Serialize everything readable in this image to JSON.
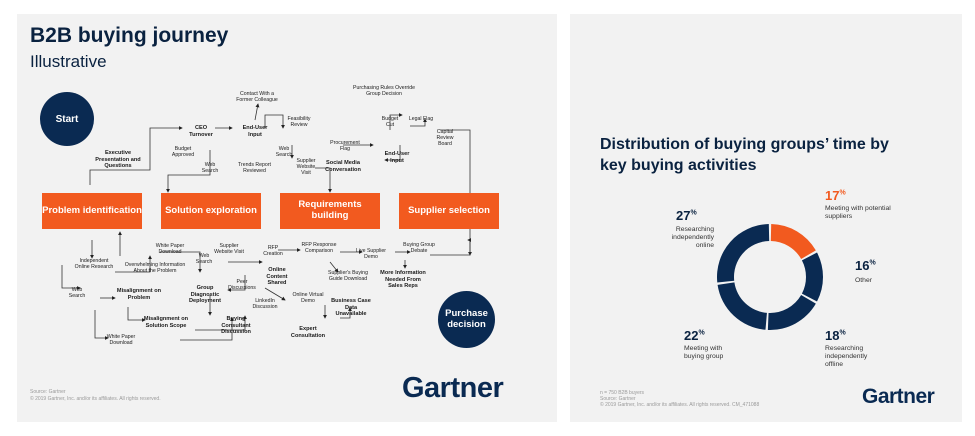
{
  "left": {
    "title": "B2B buying journey",
    "subtitle": "Illustrative",
    "start": "Start",
    "end": "Purchase decision",
    "stages": [
      "Problem identification",
      "Solution exploration",
      "Requirements building",
      "Supplier selection"
    ],
    "labels": {
      "contact": "Contact With a Former Colleague",
      "enduser1": "End-User Input",
      "ceo": "CEO Turnover",
      "budgetapproved": "Budget Approved",
      "feasibility": "Feasibility Review",
      "websearch_top": "Web Search",
      "trends": "Trends Report Reviewed",
      "supplierweb_top": "Supplier Website Visit",
      "websearch2": "Web Search",
      "exec": "Executive Presentation and Questions",
      "procurement": "Procurement Flag",
      "social": "Social Media Conversation",
      "purchasingrules": "Purchasing Rules Override Group Decision",
      "budgetcut": "Budget Cut",
      "legalflag": "Legal Flag",
      "capitalreview": "Capital Review Board",
      "enduser2": "End-User Input",
      "independent": "Independent Online Research",
      "whitepaper1": "White Paper Download",
      "websearch3": "Web Search",
      "overwhelming": "Overwhelming Information About the Problem",
      "supplierweb2": "Supplier Website Visit",
      "websearch4": "Web Search",
      "misalign1": "Misalignment on Problem",
      "groupdiag": "Group Diagnostic Deployment",
      "peer": "Peer Discussions",
      "rfp": "RFP Creation",
      "online": "Online Content Shared",
      "rfpresp": "RFP Response Comparison",
      "livedemo": "Live Supplier Demo",
      "buyingdebate": "Buying Group Debate",
      "suppliersguide": "Supplier's Buying Guide Download",
      "moreinfo": "More Information Needed From Sales Reps",
      "linkedin": "LinkedIn Discussion",
      "onlinedemo": "Online Virtual Demo",
      "businesscase": "Business Case Data Unavailable",
      "misalign2": "Misalignment on Solution Scope",
      "buyingconsult": "Buying Consultant Discussion",
      "expert": "Expert Consultation",
      "whitepaper2": "White Paper Download"
    },
    "brand": "Gartner",
    "footer": [
      "Source: Gartner",
      "© 2019 Gartner, Inc. and/or its affiliates. All rights reserved."
    ]
  },
  "right": {
    "title": "Distribution of buying groups’ time by key buying activities",
    "brand": "Gartner",
    "footer": [
      "n = 750 B2B buyers",
      "Source: Gartner",
      "© 2019 Gartner, Inc. and/or its affiliates. All rights reserved. CM_471088"
    ],
    "colors": {
      "navy": "#0a2a52",
      "orange": "#f25a1f"
    }
  },
  "chart_data": {
    "type": "pie",
    "title": "Distribution of buying groups’ time by key buying activities",
    "categories": [
      "Meeting with potential suppliers",
      "Other",
      "Researching independently offline",
      "Meeting with buying group",
      "Researching independently online"
    ],
    "values": [
      17,
      16,
      18,
      22,
      27
    ],
    "value_labels": [
      "17",
      "16",
      "18",
      "22",
      "27"
    ],
    "unit": "%",
    "highlight": "Meeting with potential suppliers",
    "colors": [
      "#f25a1f",
      "#0a2a52",
      "#0a2a52",
      "#0a2a52",
      "#0a2a52"
    ]
  }
}
